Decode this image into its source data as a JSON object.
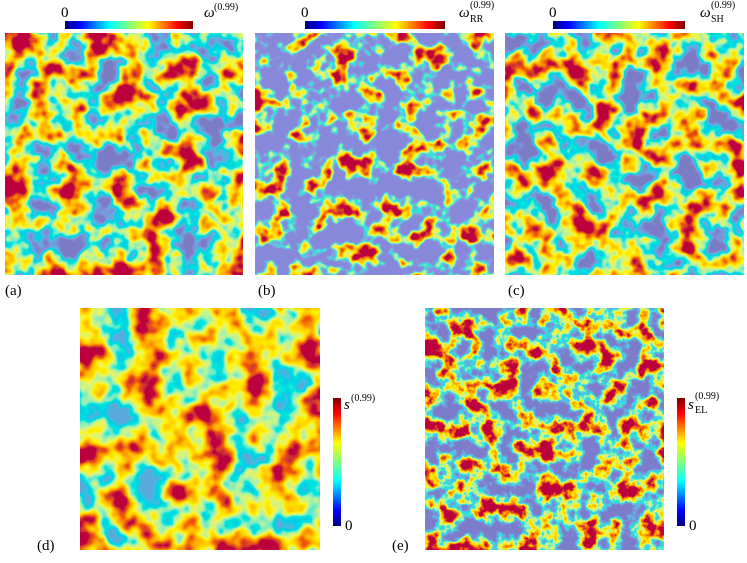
{
  "panels": [
    {
      "label": "(a)",
      "colorbar": {
        "min": "0",
        "symbol": "ω",
        "superscript": "(0.99)"
      }
    },
    {
      "label": "(b)",
      "colorbar": {
        "min": "0",
        "symbol": "ω",
        "subscript": "RR",
        "superscript": "(0.99)"
      }
    },
    {
      "label": "(c)",
      "colorbar": {
        "min": "0",
        "symbol": "ω",
        "subscript": "SH",
        "superscript": "(0.99)"
      }
    },
    {
      "label": "(d)",
      "colorbar": {
        "min": "0",
        "symbol": "s",
        "superscript": "(0.99)"
      }
    },
    {
      "label": "(e)",
      "colorbar": {
        "min": "0",
        "symbol": "s",
        "subscript": "EL",
        "superscript": "(0.99)"
      }
    }
  ]
}
